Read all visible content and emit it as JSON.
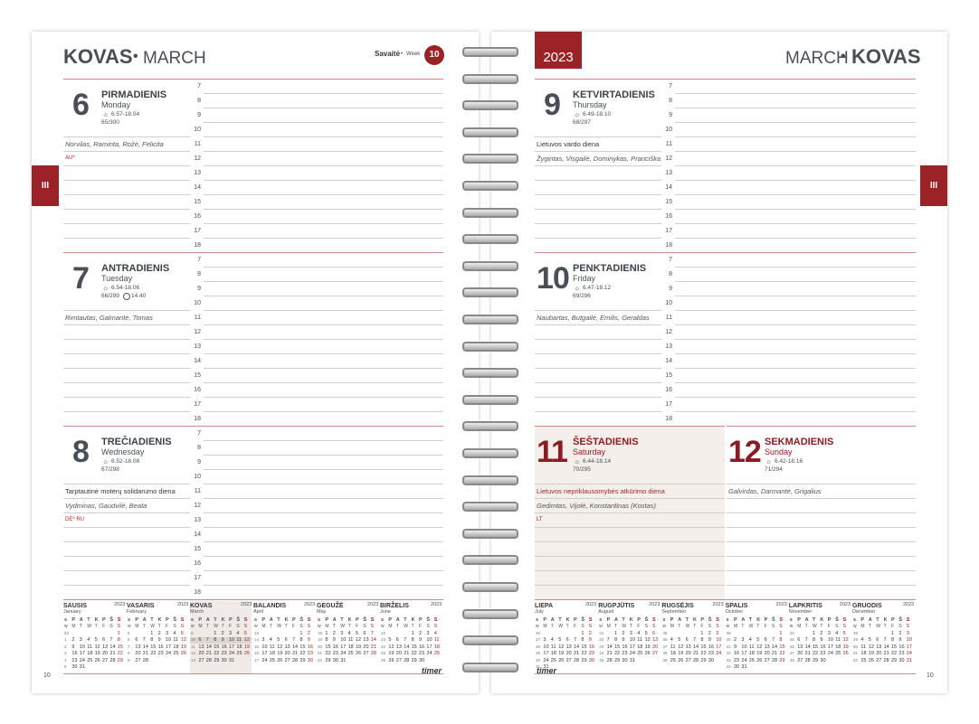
{
  "left": {
    "title_lt": "KOVAS",
    "sep": "•",
    "title_en": "MARCH",
    "week_lt": "Savaitė",
    "week_en": "Week",
    "week": 10,
    "tab": "III",
    "page": 10,
    "brand": "timer",
    "days": [
      {
        "num": 6,
        "lt": "PIRMADIENIS",
        "en": "Monday",
        "sun": "6.57-18.04",
        "count": "65/300",
        "color": "#4a4f57",
        "notes": [
          {
            "text": "Norvilas, Raminta, Rožė, Felicita",
            "color": "#555",
            "italic": true
          },
          {
            "text": "AU*",
            "color": "#a3262c",
            "italic": false
          }
        ]
      },
      {
        "num": 7,
        "lt": "ANTRADIENIS",
        "en": "Tuesday",
        "sun": "6.54-18.06",
        "count": "66/299",
        "moon": "14.40",
        "color": "#4a4f57",
        "notes": [
          {
            "text": "Rimtautas, Galmantė, Tomas",
            "color": "#555",
            "italic": true
          }
        ]
      },
      {
        "num": 8,
        "lt": "TREČIADIENIS",
        "en": "Wednesday",
        "sun": "6.52-18.08",
        "count": "67/298",
        "color": "#4a4f57",
        "notes": [
          {
            "text": "Tarptautinė moterų solidarumo diena",
            "color": "#333",
            "italic": false
          },
          {
            "text": "Vydminas, Gaudvilė, Beata",
            "color": "#555",
            "italic": true
          },
          {
            "text": "DE* RU",
            "color": "#a3262c",
            "italic": false
          }
        ]
      }
    ]
  },
  "right": {
    "year": 2023,
    "title_en": "MARCH",
    "sep": "•",
    "title_lt": "KOVAS",
    "tab": "III",
    "page": 10,
    "brand": "timer",
    "days": [
      {
        "num": 9,
        "lt": "KETVIRTADIENIS",
        "en": "Thursday",
        "sun": "6.49-18.10",
        "count": "68/297",
        "color": "#4a4f57",
        "notes": [
          {
            "text": "Lietuvos vardo diena",
            "color": "#333",
            "italic": false
          },
          {
            "text": "Žygintas, Visgailė, Dominykas, Pranciška",
            "color": "#555",
            "italic": true
          }
        ]
      },
      {
        "num": 10,
        "lt": "PENKTADIENIS",
        "en": "Friday",
        "sun": "6.47-18.12",
        "count": "69/296",
        "color": "#4a4f57",
        "notes": [
          {
            "text": "Naubartas, Butgailė, Emilis, Geraldas",
            "color": "#555",
            "italic": true
          }
        ]
      },
      {
        "num": 11,
        "lt": "ŠEŠTADIENIS",
        "en": "Saturday",
        "sun": "6.44-18.14",
        "count": "70/295",
        "color": "#8b1c24",
        "notes": [
          {
            "text": "Lietuvos nepriklausomybės atkūrimo diena",
            "color": "#a3262c",
            "italic": false
          },
          {
            "text": "Gedimtas, Vijolė, Konstantinas (Kostas)",
            "color": "#555",
            "italic": true
          },
          {
            "text": "LT",
            "color": "#a3262c",
            "italic": false
          }
        ]
      },
      {
        "num": 12,
        "lt": "SEKMADIENIS",
        "en": "Sunday",
        "sun": "6.42-18.16",
        "count": "71/294",
        "color": "#8b1c24",
        "notes": [
          {
            "text": "Galvirdas, Darmantė, Grigalius",
            "color": "#555",
            "italic": true
          }
        ]
      }
    ]
  },
  "hours": [
    7,
    8,
    9,
    10,
    11,
    12,
    13,
    14,
    15,
    16,
    17,
    18
  ],
  "weekday_lt": [
    "s",
    "P",
    "A",
    "T",
    "K",
    "P",
    "Š",
    "S"
  ],
  "weekday_en": [
    "w",
    "M",
    "T",
    "W",
    "T",
    "F",
    "S",
    "S"
  ],
  "calendars": [
    {
      "lt": "SAUSIS",
      "en": "January",
      "year": 2023,
      "weeks": [
        52,
        1,
        2,
        3,
        4,
        5
      ],
      "days": [
        [
          null,
          null,
          null,
          null,
          null,
          null,
          1
        ],
        [
          2,
          3,
          4,
          5,
          6,
          7,
          8
        ],
        [
          9,
          10,
          11,
          12,
          13,
          14,
          15
        ],
        [
          16,
          17,
          18,
          19,
          20,
          21,
          22
        ],
        [
          23,
          24,
          25,
          26,
          27,
          28,
          29
        ],
        [
          30,
          31
        ]
      ]
    },
    {
      "lt": "VASARIS",
      "en": "February",
      "year": 2023,
      "weeks": [
        5,
        6,
        7,
        8,
        9
      ],
      "days": [
        [
          null,
          null,
          1,
          2,
          3,
          4,
          5
        ],
        [
          6,
          7,
          8,
          9,
          10,
          11,
          12
        ],
        [
          13,
          14,
          15,
          16,
          17,
          18,
          19
        ],
        [
          20,
          21,
          22,
          23,
          24,
          25,
          26
        ],
        [
          27,
          28
        ]
      ]
    },
    {
      "lt": "KOVAS",
      "en": "March",
      "year": 2023,
      "weeks": [
        9,
        10,
        11,
        12,
        13
      ],
      "days": [
        [
          null,
          null,
          1,
          2,
          3,
          4,
          5
        ],
        [
          6,
          7,
          8,
          9,
          10,
          11,
          12
        ],
        [
          13,
          14,
          15,
          16,
          17,
          18,
          19
        ],
        [
          20,
          21,
          22,
          23,
          24,
          25,
          26
        ],
        [
          27,
          28,
          29,
          30,
          31
        ]
      ]
    },
    {
      "lt": "BALANDIS",
      "en": "April",
      "year": 2023,
      "weeks": [
        13,
        14,
        15,
        16,
        17
      ],
      "days": [
        [
          null,
          null,
          null,
          null,
          null,
          1,
          2
        ],
        [
          3,
          4,
          5,
          6,
          7,
          8,
          9
        ],
        [
          10,
          11,
          12,
          13,
          14,
          15,
          16
        ],
        [
          17,
          18,
          19,
          20,
          21,
          22,
          23
        ],
        [
          24,
          25,
          26,
          27,
          28,
          29,
          30
        ]
      ]
    },
    {
      "lt": "GEGUŽĖ",
      "en": "May",
      "year": 2023,
      "weeks": [
        18,
        19,
        20,
        21,
        22
      ],
      "days": [
        [
          1,
          2,
          3,
          4,
          5,
          6,
          7
        ],
        [
          8,
          9,
          10,
          11,
          12,
          13,
          14
        ],
        [
          15,
          16,
          17,
          18,
          19,
          20,
          21
        ],
        [
          22,
          23,
          24,
          25,
          26,
          27,
          28
        ],
        [
          29,
          30,
          31
        ]
      ]
    },
    {
      "lt": "BIRŽELIS",
      "en": "June",
      "year": 2023,
      "weeks": [
        22,
        23,
        24,
        25,
        26
      ],
      "days": [
        [
          null,
          null,
          null,
          1,
          2,
          3,
          4
        ],
        [
          5,
          6,
          7,
          8,
          9,
          10,
          11
        ],
        [
          12,
          13,
          14,
          15,
          16,
          17,
          18
        ],
        [
          19,
          20,
          21,
          22,
          23,
          24,
          25
        ],
        [
          26,
          27,
          28,
          29,
          30
        ]
      ]
    },
    {
      "lt": "LIEPA",
      "en": "July",
      "year": 2023,
      "weeks": [
        26,
        27,
        28,
        29,
        30,
        31
      ],
      "days": [
        [
          null,
          null,
          null,
          null,
          null,
          1,
          2
        ],
        [
          3,
          4,
          5,
          6,
          7,
          8,
          9
        ],
        [
          10,
          11,
          12,
          13,
          14,
          15,
          16
        ],
        [
          17,
          18,
          19,
          20,
          21,
          22,
          23
        ],
        [
          24,
          25,
          26,
          27,
          28,
          29,
          30
        ],
        [
          31
        ]
      ]
    },
    {
      "lt": "RUGPJŪTIS",
      "en": "August",
      "year": 2023,
      "weeks": [
        31,
        32,
        33,
        34,
        35
      ],
      "days": [
        [
          null,
          1,
          2,
          3,
          4,
          5,
          6
        ],
        [
          7,
          8,
          9,
          10,
          11,
          12,
          13
        ],
        [
          14,
          15,
          16,
          17,
          18,
          19,
          20
        ],
        [
          21,
          22,
          23,
          24,
          25,
          26,
          27
        ],
        [
          28,
          29,
          30,
          31
        ]
      ]
    },
    {
      "lt": "RUGSĖJIS",
      "en": "September",
      "year": 2023,
      "weeks": [
        35,
        36,
        37,
        38,
        39
      ],
      "days": [
        [
          null,
          null,
          null,
          null,
          1,
          2,
          3
        ],
        [
          4,
          5,
          6,
          7,
          8,
          9,
          10
        ],
        [
          11,
          12,
          13,
          14,
          15,
          16,
          17
        ],
        [
          18,
          19,
          20,
          21,
          22,
          23,
          24
        ],
        [
          25,
          26,
          27,
          28,
          29,
          30
        ]
      ]
    },
    {
      "lt": "SPALIS",
      "en": "October",
      "year": 2023,
      "weeks": [
        39,
        40,
        41,
        42,
        43,
        44
      ],
      "days": [
        [
          null,
          null,
          null,
          null,
          null,
          null,
          1
        ],
        [
          2,
          3,
          4,
          5,
          6,
          7,
          8
        ],
        [
          9,
          10,
          11,
          12,
          13,
          14,
          15
        ],
        [
          16,
          17,
          18,
          19,
          20,
          21,
          22
        ],
        [
          23,
          24,
          25,
          26,
          27,
          28,
          29
        ],
        [
          30,
          31
        ]
      ]
    },
    {
      "lt": "LAPKRITIS",
      "en": "November",
      "year": 2023,
      "weeks": [
        44,
        45,
        46,
        47,
        48
      ],
      "days": [
        [
          null,
          null,
          1,
          2,
          3,
          4,
          5
        ],
        [
          6,
          7,
          8,
          9,
          10,
          11,
          12
        ],
        [
          13,
          14,
          15,
          16,
          17,
          18,
          19
        ],
        [
          20,
          21,
          22,
          23,
          24,
          25,
          26
        ],
        [
          27,
          28,
          29,
          30
        ]
      ]
    },
    {
      "lt": "GRUODIS",
      "en": "December",
      "year": 2023,
      "weeks": [
        48,
        49,
        50,
        51,
        52
      ],
      "days": [
        [
          null,
          null,
          null,
          null,
          1,
          2,
          3
        ],
        [
          4,
          5,
          6,
          7,
          8,
          9,
          10
        ],
        [
          11,
          12,
          13,
          14,
          15,
          16,
          17
        ],
        [
          18,
          19,
          20,
          21,
          22,
          23,
          24
        ],
        [
          25,
          26,
          27,
          28,
          29,
          30,
          31
        ]
      ]
    }
  ]
}
